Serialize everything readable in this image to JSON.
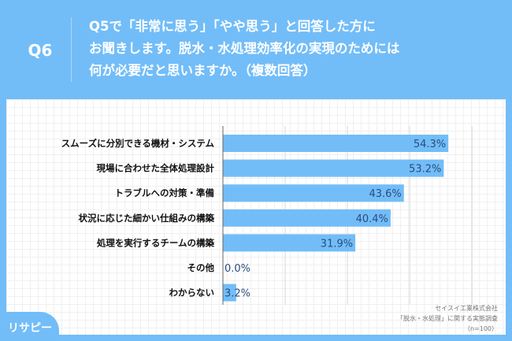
{
  "header": {
    "question_number": "Q6",
    "title": "Q5で「非常に思う」「やや思う」と回答した方に\nお聞きします。脱水・水処理効率化の実現のためには\n何が必要だと思いますか。（複数回答）"
  },
  "colors": {
    "background": "#72bdf8",
    "bar": "#72bdf8",
    "value_text": "#2b4c7e"
  },
  "chart_data": {
    "type": "bar",
    "orientation": "horizontal",
    "categories": [
      "スムーズに分別できる機材・システム",
      "現場に合わせた全体処理設計",
      "トラブルへの対策・準備",
      "状況に応じた細かい仕組みの構築",
      "処理を実行するチームの構築",
      "その他",
      "わからない"
    ],
    "values": [
      54.3,
      53.2,
      43.6,
      40.4,
      31.9,
      0.0,
      3.2
    ],
    "value_labels": [
      "54.3%",
      "53.2%",
      "43.6%",
      "40.4%",
      "31.9%",
      "0.0%",
      "3.2%"
    ],
    "unit": "%",
    "grid": true
  },
  "footer": {
    "source_lines": [
      "セイスイ工業株式会社",
      "「脱水・水処理」に関する実態調査",
      "（n=100）"
    ],
    "logo": "リサピー"
  }
}
